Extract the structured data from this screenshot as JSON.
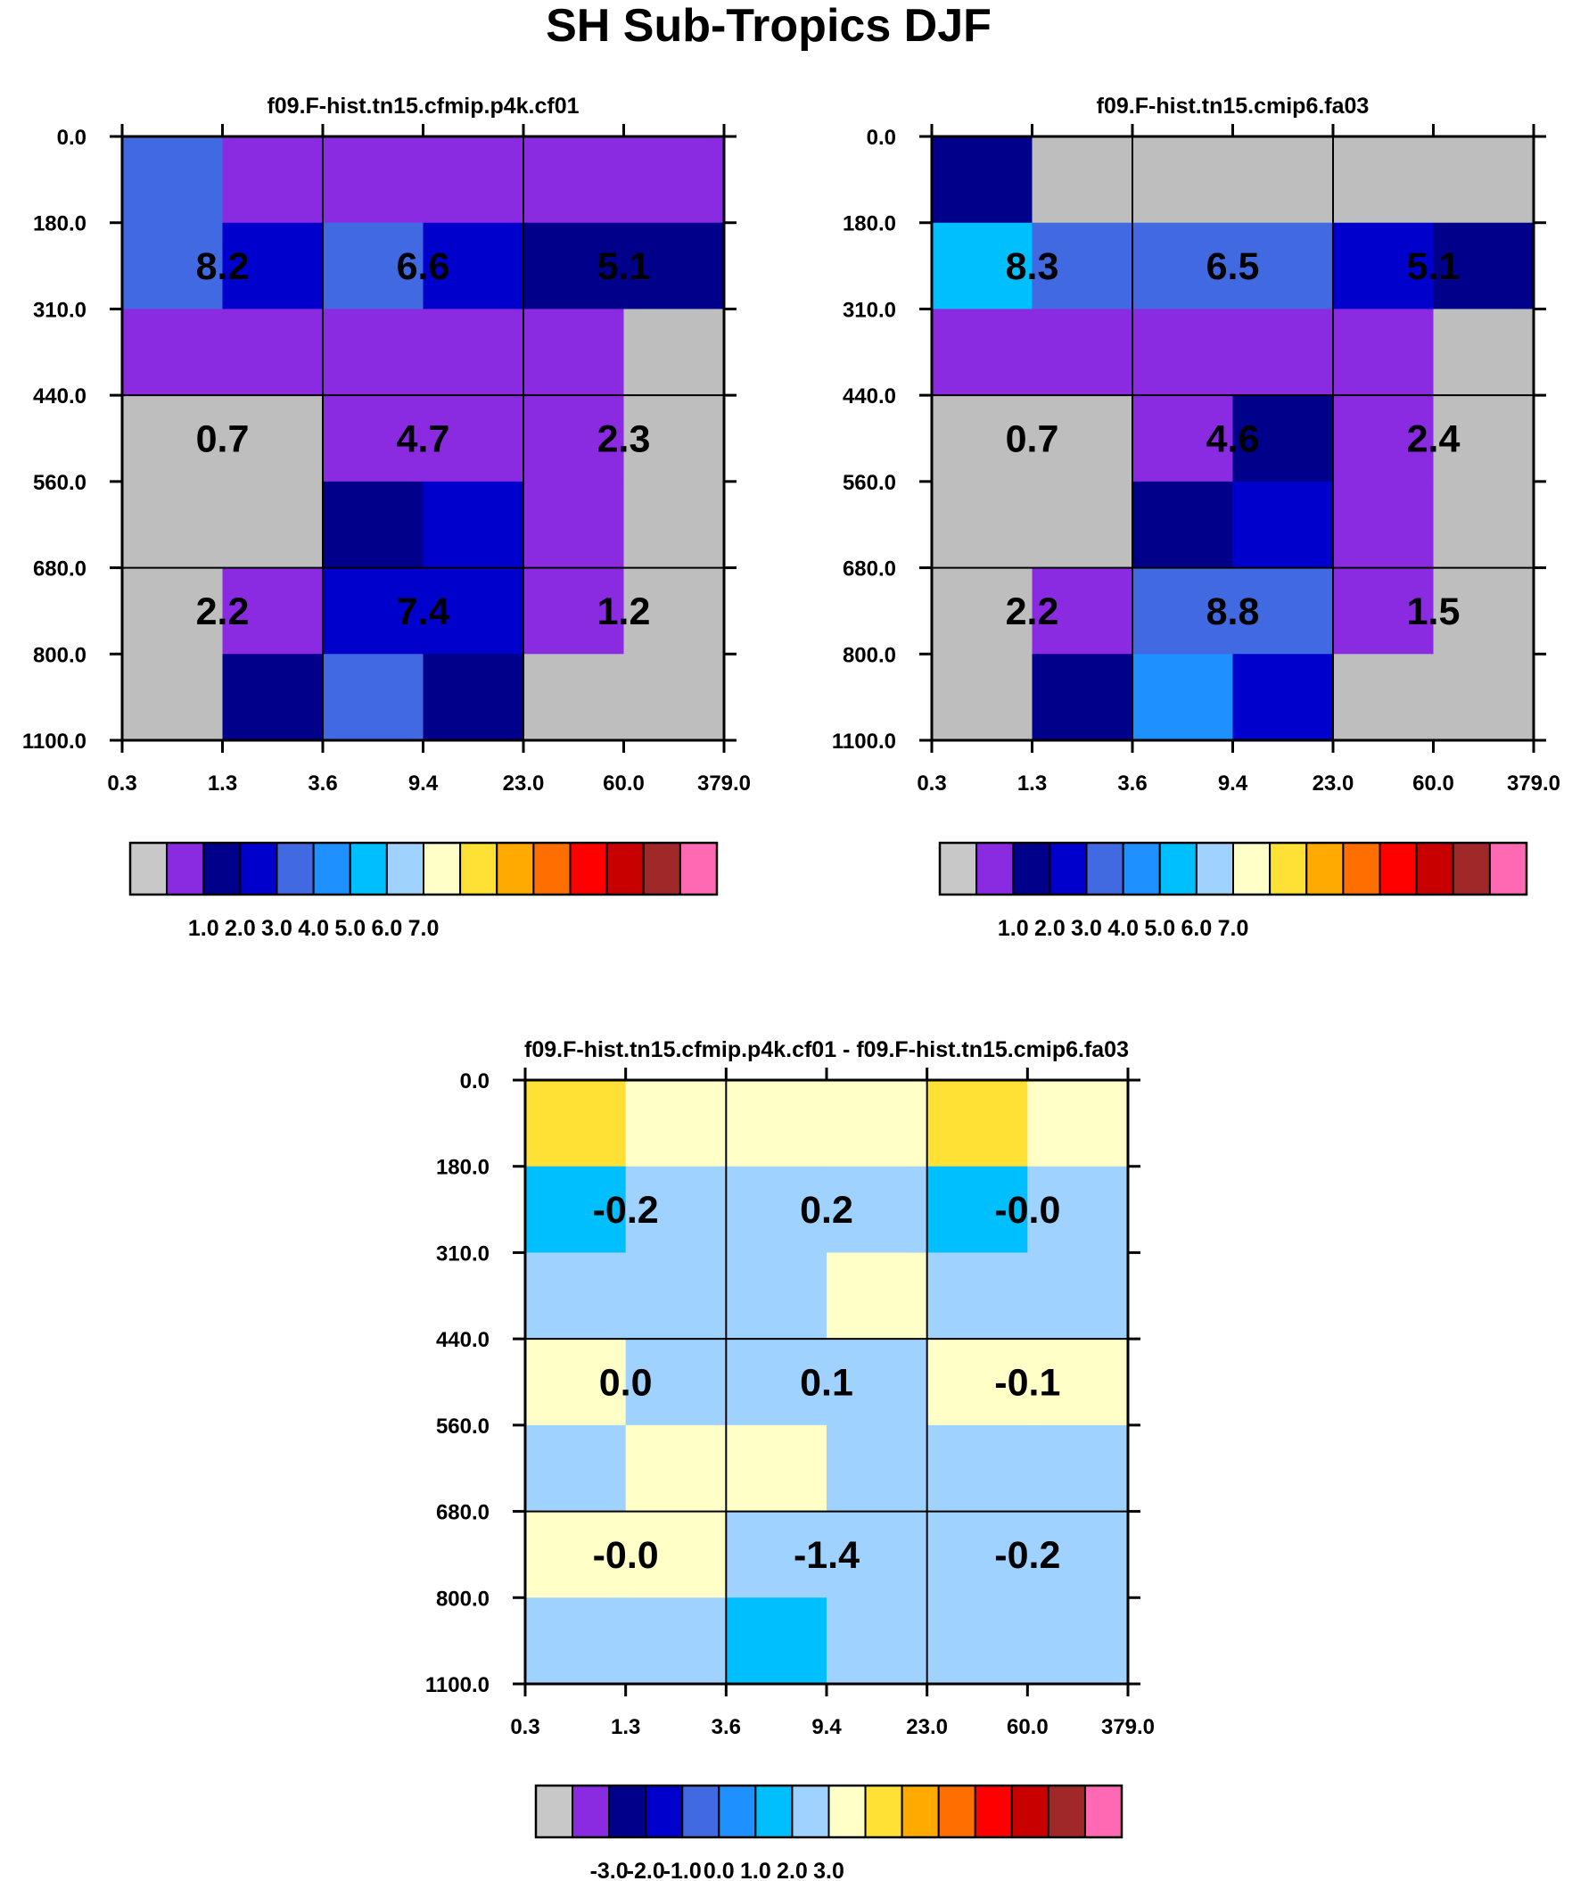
{
  "figure": {
    "title": "SH Sub-Tropics DJF"
  },
  "chart_data": [
    {
      "type": "heatmap",
      "title": "f09.F-hist.tn15.cfmip.p4k.cf01",
      "x_tick_labels": [
        "0.3",
        "1.3",
        "3.6",
        "9.4",
        "23.0",
        "60.0",
        "379.0"
      ],
      "y_tick_labels": [
        "0.0",
        "180.0",
        "310.0",
        "440.0",
        "560.0",
        "680.0",
        "800.0",
        "1100.0"
      ],
      "cell_colors": [
        [
          "#4169E1",
          "#8A2BE2",
          "#8A2BE2",
          "#8A2BE2",
          "#8A2BE2",
          "#8A2BE2"
        ],
        [
          "#4169E1",
          "#0000CD",
          "#4169E1",
          "#0000CD",
          "#00008B",
          "#00008B"
        ],
        [
          "#8A2BE2",
          "#8A2BE2",
          "#8A2BE2",
          "#8A2BE2",
          "#8A2BE2",
          "#BEBEBE"
        ],
        [
          "#BEBEBE",
          "#BEBEBE",
          "#8A2BE2",
          "#8A2BE2",
          "#8A2BE2",
          "#BEBEBE"
        ],
        [
          "#BEBEBE",
          "#BEBEBE",
          "#00008B",
          "#0000CD",
          "#8A2BE2",
          "#BEBEBE"
        ],
        [
          "#BEBEBE",
          "#8A2BE2",
          "#0000CD",
          "#0000CD",
          "#8A2BE2",
          "#BEBEBE"
        ],
        [
          "#BEBEBE",
          "#00008B",
          "#4169E1",
          "#00008B",
          "#BEBEBE",
          "#BEBEBE"
        ]
      ],
      "box_labels": [
        [
          "8.2",
          "6.6",
          "5.1"
        ],
        [
          "0.7",
          "4.7",
          "2.3"
        ],
        [
          "2.2",
          "7.4",
          "1.2"
        ]
      ],
      "colorbar": {
        "colors": [
          "#C8C8C8",
          "#8A2BE2",
          "#00008B",
          "#0000CD",
          "#4169E1",
          "#1E90FF",
          "#00BFFF",
          "#A0D2FF",
          "#FFFFC8",
          "#FFE135",
          "#FFAA00",
          "#FF6E00",
          "#FF0000",
          "#C80000",
          "#A02828",
          "#FF69B4"
        ],
        "tick_labels": [
          "1.0",
          "2.0",
          "3.0",
          "4.0",
          "5.0",
          "6.0",
          "7.0"
        ]
      }
    },
    {
      "type": "heatmap",
      "title": "f09.F-hist.tn15.cmip6.fa03",
      "x_tick_labels": [
        "0.3",
        "1.3",
        "3.6",
        "9.4",
        "23.0",
        "60.0",
        "379.0"
      ],
      "y_tick_labels": [
        "0.0",
        "180.0",
        "310.0",
        "440.0",
        "560.0",
        "680.0",
        "800.0",
        "1100.0"
      ],
      "cell_colors": [
        [
          "#00008B",
          "#BEBEBE",
          "#BEBEBE",
          "#BEBEBE",
          "#BEBEBE",
          "#BEBEBE"
        ],
        [
          "#00BFFF",
          "#4169E1",
          "#4169E1",
          "#4169E1",
          "#0000CD",
          "#00008B"
        ],
        [
          "#8A2BE2",
          "#8A2BE2",
          "#8A2BE2",
          "#8A2BE2",
          "#8A2BE2",
          "#BEBEBE"
        ],
        [
          "#BEBEBE",
          "#BEBEBE",
          "#8A2BE2",
          "#00008B",
          "#8A2BE2",
          "#BEBEBE"
        ],
        [
          "#BEBEBE",
          "#BEBEBE",
          "#00008B",
          "#0000CD",
          "#8A2BE2",
          "#BEBEBE"
        ],
        [
          "#BEBEBE",
          "#8A2BE2",
          "#4169E1",
          "#4169E1",
          "#8A2BE2",
          "#BEBEBE"
        ],
        [
          "#BEBEBE",
          "#00008B",
          "#1E90FF",
          "#0000CD",
          "#BEBEBE",
          "#BEBEBE"
        ]
      ],
      "box_labels": [
        [
          "8.3",
          "6.5",
          "5.1"
        ],
        [
          "0.7",
          "4.6",
          "2.4"
        ],
        [
          "2.2",
          "8.8",
          "1.5"
        ]
      ],
      "colorbar": {
        "colors": [
          "#C8C8C8",
          "#8A2BE2",
          "#00008B",
          "#0000CD",
          "#4169E1",
          "#1E90FF",
          "#00BFFF",
          "#A0D2FF",
          "#FFFFC8",
          "#FFE135",
          "#FFAA00",
          "#FF6E00",
          "#FF0000",
          "#C80000",
          "#A02828",
          "#FF69B4"
        ],
        "tick_labels": [
          "1.0",
          "2.0",
          "3.0",
          "4.0",
          "5.0",
          "6.0",
          "7.0"
        ]
      }
    },
    {
      "type": "heatmap",
      "title": "f09.F-hist.tn15.cfmip.p4k.cf01 - f09.F-hist.tn15.cmip6.fa03",
      "x_tick_labels": [
        "0.3",
        "1.3",
        "3.6",
        "9.4",
        "23.0",
        "60.0",
        "379.0"
      ],
      "y_tick_labels": [
        "0.0",
        "180.0",
        "310.0",
        "440.0",
        "560.0",
        "680.0",
        "800.0",
        "1100.0"
      ],
      "cell_colors": [
        [
          "#FFE135",
          "#FFFFC8",
          "#FFFFC8",
          "#FFFFC8",
          "#FFE135",
          "#FFFFC8"
        ],
        [
          "#00BFFF",
          "#A0D2FF",
          "#A0D2FF",
          "#A0D2FF",
          "#00BFFF",
          "#A0D2FF"
        ],
        [
          "#A0D2FF",
          "#A0D2FF",
          "#A0D2FF",
          "#FFFFC8",
          "#A0D2FF",
          "#A0D2FF"
        ],
        [
          "#FFFFC8",
          "#A0D2FF",
          "#A0D2FF",
          "#A0D2FF",
          "#FFFFC8",
          "#FFFFC8"
        ],
        [
          "#A0D2FF",
          "#FFFFC8",
          "#FFFFC8",
          "#A0D2FF",
          "#A0D2FF",
          "#A0D2FF"
        ],
        [
          "#FFFFC8",
          "#FFFFC8",
          "#A0D2FF",
          "#A0D2FF",
          "#A0D2FF",
          "#A0D2FF"
        ],
        [
          "#A0D2FF",
          "#A0D2FF",
          "#00BFFF",
          "#A0D2FF",
          "#A0D2FF",
          "#A0D2FF"
        ]
      ],
      "box_labels": [
        [
          "-0.2",
          "0.2",
          "-0.0"
        ],
        [
          "0.0",
          "0.1",
          "-0.1"
        ],
        [
          "-0.0",
          "-1.4",
          "-0.2"
        ]
      ],
      "colorbar": {
        "colors": [
          "#C8C8C8",
          "#8A2BE2",
          "#00008B",
          "#0000CD",
          "#4169E1",
          "#1E90FF",
          "#00BFFF",
          "#A0D2FF",
          "#FFFFC8",
          "#FFE135",
          "#FFAA00",
          "#FF6E00",
          "#FF0000",
          "#C80000",
          "#A02828",
          "#FF69B4"
        ],
        "tick_labels": [
          "-3.0",
          "-2.0",
          "-1.0",
          "0.0",
          "1.0",
          "2.0",
          "3.0"
        ]
      }
    }
  ]
}
